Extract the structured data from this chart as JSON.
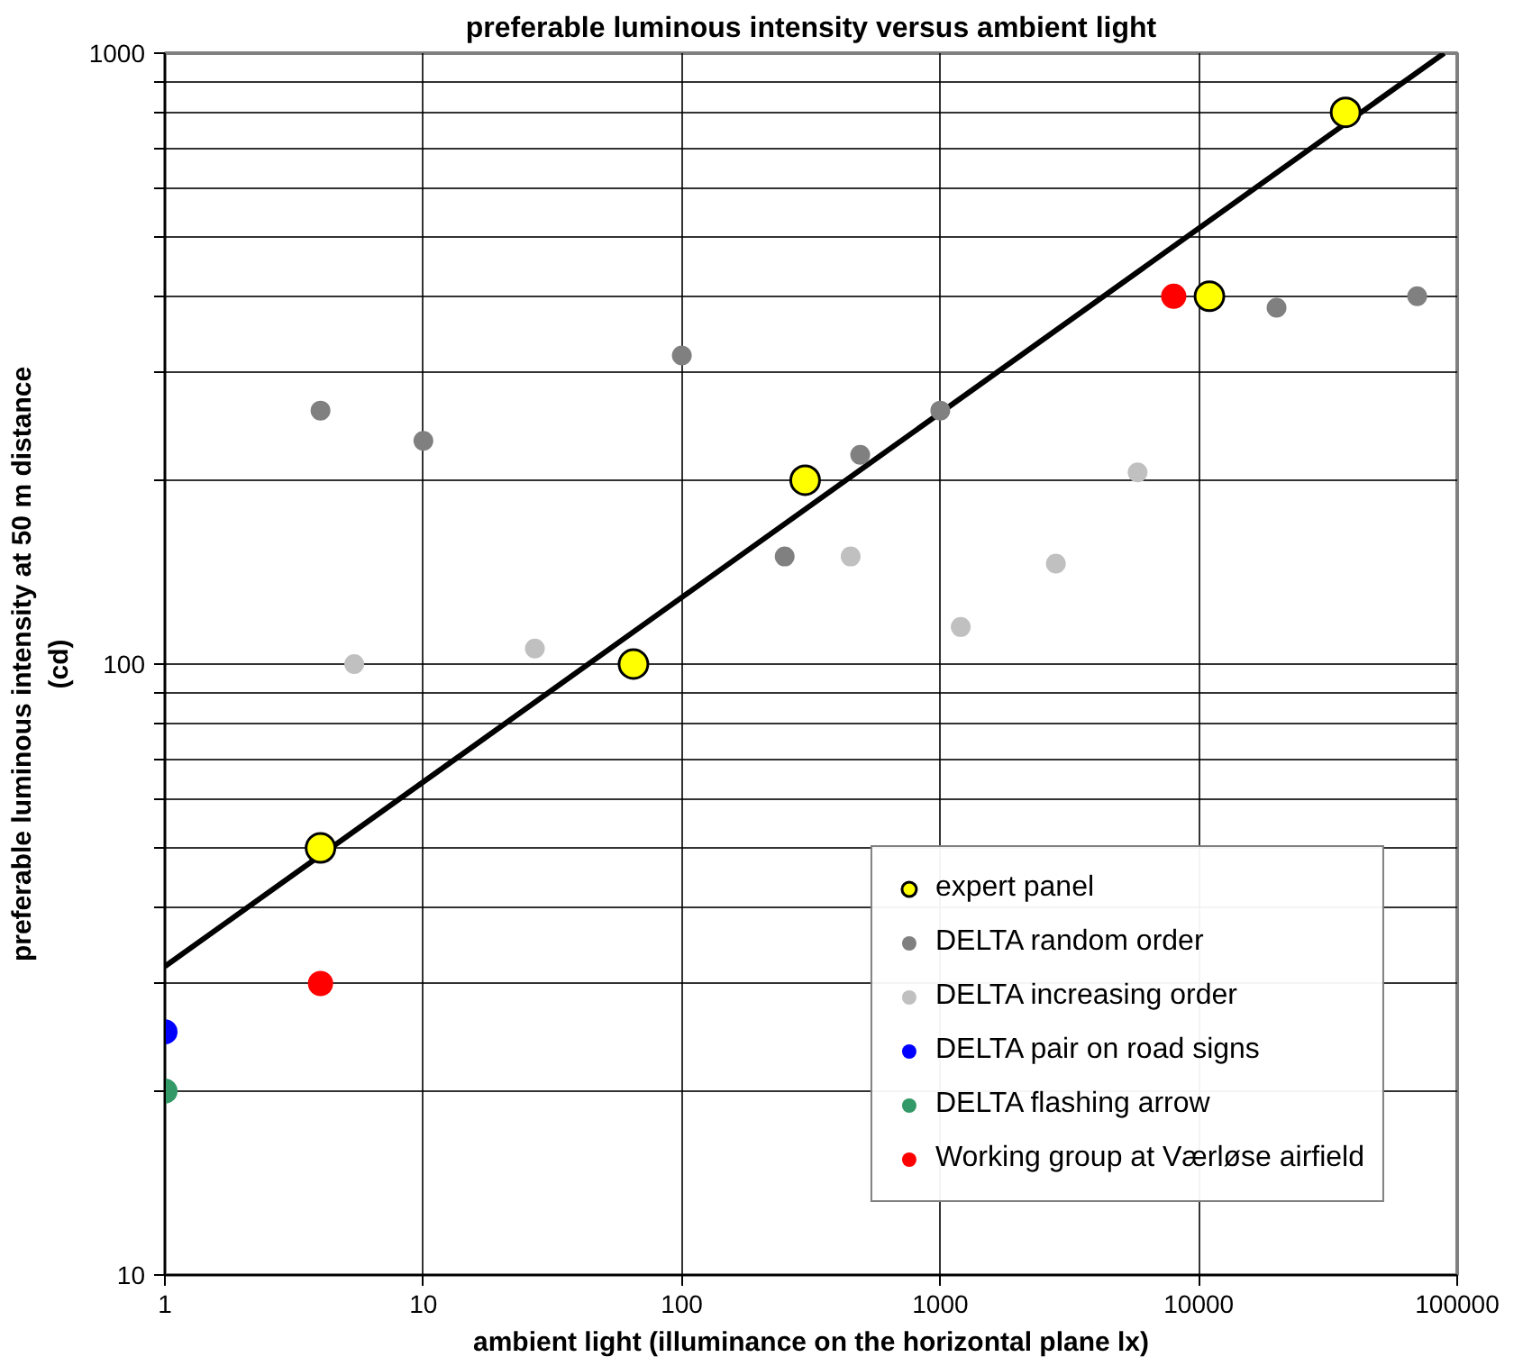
{
  "chart_data": {
    "type": "scatter",
    "title": "preferable luminous intensity versus ambient light",
    "xlabel": "ambient light (illuminance on the horizontal plane lx)",
    "ylabel": "preferable luminous intensity at 50 m distance\n(cd)",
    "log": "xy",
    "grid": true,
    "legend": "bottom right",
    "marker": "circle",
    "xlim": [
      1,
      100000
    ],
    "ylim": [
      10,
      1000
    ],
    "xticks": [
      1,
      10,
      100,
      1000,
      10000,
      100000
    ],
    "yticks": [
      10,
      {
        "value": 20,
        "label": null
      },
      {
        "value": 30,
        "label": null
      },
      {
        "value": 40,
        "label": null
      },
      {
        "value": 50,
        "label": null
      },
      {
        "value": 60,
        "label": null
      },
      {
        "value": 70,
        "label": null
      },
      {
        "value": 80,
        "label": null
      },
      {
        "value": 90,
        "label": null
      },
      100,
      {
        "value": 200,
        "label": null
      },
      {
        "value": 300,
        "label": null
      },
      {
        "value": 400,
        "label": null
      },
      {
        "value": 500,
        "label": null
      },
      {
        "value": 600,
        "label": null
      },
      {
        "value": 700,
        "label": null
      },
      {
        "value": 800,
        "label": null
      },
      {
        "value": 900,
        "label": null
      },
      1000
    ],
    "series": [
      {
        "type": "line",
        "color": "#000000",
        "marker": "none",
        "x": [
          1,
          89000
        ],
        "values": [
          32,
          1000
        ]
      },
      {
        "name": "expert panel",
        "color": "#ffff00",
        "x": [
          4,
          65,
          300,
          11000,
          37000
        ],
        "values": [
          50,
          100,
          200,
          400,
          800
        ]
      },
      {
        "name": "DELTA random order",
        "color": "#808080",
        "x": [
          4,
          10,
          100,
          250,
          490,
          1000,
          20000,
          70000
        ],
        "values": [
          260,
          232,
          320,
          150,
          220,
          260,
          383,
          400
        ]
      },
      {
        "name": "DELTA increasing order",
        "color": "#c0c0c0",
        "x": [
          5.4,
          27,
          450,
          1200,
          2800,
          5800
        ],
        "values": [
          100,
          106,
          150,
          115,
          146,
          206
        ]
      },
      {
        "name": "DELTA pair on road signs",
        "color": "#0000ff",
        "x": [
          1
        ],
        "values": [
          25
        ]
      },
      {
        "name": "DELTA flashing arrow",
        "color": "#339966",
        "x": [
          1
        ],
        "values": [
          20
        ]
      },
      {
        "name": "Working group at Værløse airfield",
        "color": "#ff0000",
        "x": [
          4,
          8000
        ],
        "values": [
          30,
          400
        ]
      }
    ]
  }
}
